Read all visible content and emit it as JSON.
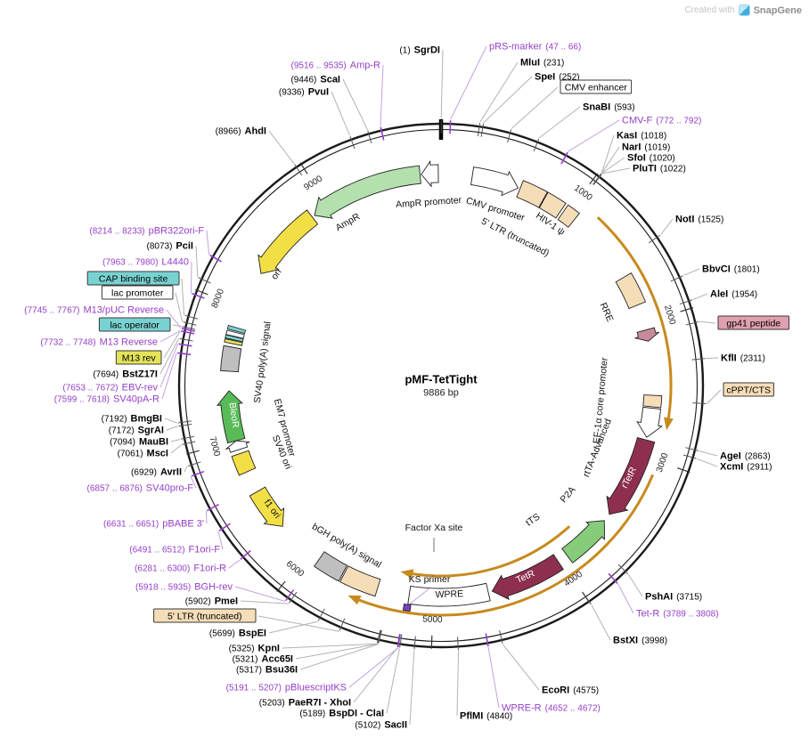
{
  "watermark": {
    "prefix": "Created with",
    "brand": "SnapGene"
  },
  "plasmid": {
    "name": "pMF-TetTight",
    "size": "9886 bp",
    "length": 9886
  },
  "scale": {
    "ticks": [
      1000,
      2000,
      3000,
      4000,
      5000,
      6000,
      7000,
      8000,
      9000
    ]
  },
  "colors": {
    "primer": "#9540c8",
    "primer_leader": "#c5a0e2",
    "enzyme_leader": "#b3b3b3",
    "gold": "#c78a1e",
    "maroon": "#8e2f4f",
    "tan": "#f5ddb8",
    "teal": "#79d2d2",
    "yellow": "#f2df45",
    "gray_box": "#bfbfbf",
    "green_light": "#b4e0ae",
    "green": "#58bb58"
  },
  "callouts": [
    {
      "label": "SgrDI",
      "pos": "(1)",
      "kind": "enzyme",
      "bp": 1,
      "side": "left"
    },
    {
      "label": "pRS-marker",
      "pos": "(47 .. 66)",
      "kind": "primer",
      "bp": 56,
      "side": "right"
    },
    {
      "label": "MluI",
      "pos": "(231)",
      "kind": "enzyme",
      "bp": 231,
      "side": "right"
    },
    {
      "label": "SpeI",
      "pos": "(252)",
      "kind": "enzyme",
      "bp": 252,
      "side": "right"
    },
    {
      "label": "CMV enhancer",
      "kind": "box",
      "fill": "#ffffff",
      "bp": 420,
      "side": "right"
    },
    {
      "label": "SnaBI",
      "pos": "(593)",
      "kind": "enzyme",
      "bp": 593,
      "side": "right"
    },
    {
      "label": "CMV-F",
      "pos": "(772 .. 792)",
      "kind": "primer",
      "bp": 782,
      "side": "right"
    },
    {
      "label": "KasI",
      "pos": "(1018)",
      "kind": "enzyme",
      "bp": 1018,
      "side": "right"
    },
    {
      "label": "NarI",
      "pos": "(1019)",
      "kind": "enzyme",
      "bp": 1019,
      "side": "right"
    },
    {
      "label": "SfoI",
      "pos": "(1020)",
      "kind": "enzyme",
      "bp": 1020,
      "side": "right"
    },
    {
      "label": "PluTI",
      "pos": "(1022)",
      "kind": "enzyme",
      "bp": 1022,
      "side": "right"
    },
    {
      "label": "NotI",
      "pos": "(1525)",
      "kind": "enzyme",
      "bp": 1525,
      "side": "right"
    },
    {
      "label": "BbvCI",
      "pos": "(1801)",
      "kind": "enzyme",
      "bp": 1801,
      "side": "right"
    },
    {
      "label": "AleI",
      "pos": "(1954)",
      "kind": "enzyme",
      "bp": 1954,
      "side": "right"
    },
    {
      "label": "gp41 peptide",
      "kind": "box",
      "fill": "#dfa0af",
      "bp": 2090,
      "side": "right"
    },
    {
      "label": "KflI",
      "pos": "(2311)",
      "kind": "enzyme",
      "bp": 2311,
      "side": "right"
    },
    {
      "label": "cPPT/CTS",
      "kind": "box",
      "fill": "#f5ddb8",
      "bp": 2580,
      "side": "right"
    },
    {
      "label": "AgeI",
      "pos": "(2863)",
      "kind": "enzyme",
      "bp": 2863,
      "side": "right"
    },
    {
      "label": "XcmI",
      "pos": "(2911)",
      "kind": "enzyme",
      "bp": 2911,
      "side": "right"
    },
    {
      "label": "PshAI",
      "pos": "(3715)",
      "kind": "enzyme",
      "bp": 3715,
      "side": "right"
    },
    {
      "label": "Tet-R",
      "pos": "(3789 .. 3808)",
      "kind": "primer",
      "bp": 3798,
      "side": "right"
    },
    {
      "label": "BstXI",
      "pos": "(3998)",
      "kind": "enzyme",
      "bp": 3998,
      "side": "right"
    },
    {
      "label": "EcoRI",
      "pos": "(4575)",
      "kind": "enzyme",
      "bp": 4575,
      "side": "right"
    },
    {
      "label": "WPRE-R",
      "pos": "(4652 .. 4672)",
      "kind": "primer",
      "bp": 4662,
      "side": "right"
    },
    {
      "label": "PflMI",
      "pos": "(4840)",
      "kind": "enzyme",
      "bp": 4840,
      "side": "right"
    },
    {
      "label": "SacII",
      "pos": "(5102)",
      "kind": "enzyme",
      "bp": 5102,
      "side": "left"
    },
    {
      "label": "BspDI - ClaI",
      "pos": "(5189)",
      "kind": "enzyme",
      "bp": 5189,
      "side": "left"
    },
    {
      "label": "PaeR7I - XhoI",
      "pos": "(5203)",
      "kind": "enzyme",
      "bp": 5203,
      "side": "left"
    },
    {
      "label": "pBluescriptKS",
      "pos": "(5191 .. 5207)",
      "kind": "primer",
      "bp": 5199,
      "side": "left"
    },
    {
      "label": "Bsu36I",
      "pos": "(5317)",
      "kind": "enzyme",
      "bp": 5317,
      "side": "left"
    },
    {
      "label": "Acc65I",
      "pos": "(5321)",
      "kind": "enzyme",
      "bp": 5321,
      "side": "left"
    },
    {
      "label": "KpnI",
      "pos": "(5325)",
      "kind": "enzyme",
      "bp": 5325,
      "side": "left"
    },
    {
      "label": "BspEI",
      "pos": "(5699)",
      "kind": "enzyme",
      "bp": 5699,
      "side": "left"
    },
    {
      "label": "5' LTR (truncated)",
      "kind": "box",
      "fill": "#f5ddb8",
      "bp": 5560,
      "side": "left"
    },
    {
      "label": "PmeI",
      "pos": "(5902)",
      "kind": "enzyme",
      "bp": 5902,
      "side": "left"
    },
    {
      "label": "BGH-rev",
      "pos": "(5918 .. 5935)",
      "kind": "primer",
      "bp": 5926,
      "side": "left"
    },
    {
      "label": "F1ori-R",
      "pos": "(6281 .. 6300)",
      "kind": "primer",
      "bp": 6290,
      "side": "left"
    },
    {
      "label": "F1ori-F",
      "pos": "(6491 .. 6512)",
      "kind": "primer",
      "bp": 6501,
      "side": "left"
    },
    {
      "label": "pBABE 3'",
      "pos": "(6631 .. 6651)",
      "kind": "primer",
      "bp": 6641,
      "side": "left"
    },
    {
      "label": "SV40pro-F",
      "pos": "(6857 .. 6876)",
      "kind": "primer",
      "bp": 6866,
      "side": "left"
    },
    {
      "label": "AvrII",
      "pos": "(6929)",
      "kind": "enzyme",
      "bp": 6929,
      "side": "left"
    },
    {
      "label": "MscI",
      "pos": "(7061)",
      "kind": "enzyme",
      "bp": 7061,
      "side": "left"
    },
    {
      "label": "MauBI",
      "pos": "(7094)",
      "kind": "enzyme",
      "bp": 7094,
      "side": "left"
    },
    {
      "label": "SgrAI",
      "pos": "(7172)",
      "kind": "enzyme",
      "bp": 7172,
      "side": "left"
    },
    {
      "label": "BmgBI",
      "pos": "(7192)",
      "kind": "enzyme",
      "bp": 7192,
      "side": "left"
    },
    {
      "label": "SV40pA-R",
      "pos": "(7599 .. 7618)",
      "kind": "primer",
      "bp": 7608,
      "side": "left"
    },
    {
      "label": "EBV-rev",
      "pos": "(7653 .. 7672)",
      "kind": "primer",
      "bp": 7662,
      "side": "left"
    },
    {
      "label": "BstZ17I",
      "pos": "(7694)",
      "kind": "enzyme",
      "bp": 7694,
      "side": "left"
    },
    {
      "label": "M13 rev",
      "kind": "box",
      "fill": "#e3e35a",
      "bp": 7740,
      "side": "left"
    },
    {
      "label": "M13 Reverse",
      "pos": "(7732 .. 7748)",
      "kind": "primer",
      "bp": 7740,
      "side": "left"
    },
    {
      "label": "lac operator",
      "kind": "box",
      "fill": "#79d2d2",
      "bp": 7767,
      "side": "left"
    },
    {
      "label": "M13/pUC Reverse",
      "pos": "(7745 .. 7767)",
      "kind": "primer",
      "bp": 7756,
      "side": "left"
    },
    {
      "label": "lac promoter",
      "kind": "box",
      "fill": "#ffffff",
      "bp": 7795,
      "side": "left"
    },
    {
      "label": "CAP binding site",
      "kind": "box",
      "fill": "#79d2d2",
      "bp": 7835,
      "side": "left"
    },
    {
      "label": "L4440",
      "pos": "(7963 .. 7980)",
      "kind": "primer",
      "bp": 7971,
      "side": "left"
    },
    {
      "label": "PciI",
      "pos": "(8073)",
      "kind": "enzyme",
      "bp": 8073,
      "side": "left"
    },
    {
      "label": "pBR322ori-F",
      "pos": "(8214 .. 8233)",
      "kind": "primer",
      "bp": 8223,
      "side": "left"
    },
    {
      "label": "AhdI",
      "pos": "(8966)",
      "kind": "enzyme",
      "bp": 8966,
      "side": "left"
    },
    {
      "label": "PvuI",
      "pos": "(9336)",
      "kind": "enzyme",
      "bp": 9336,
      "side": "left"
    },
    {
      "label": "ScaI",
      "pos": "(9446)",
      "kind": "enzyme",
      "bp": 9446,
      "side": "left"
    },
    {
      "label": "Amp-R",
      "pos": "(9516 .. 9535)",
      "kind": "primer",
      "bp": 9525,
      "side": "left"
    }
  ],
  "features": [
    {
      "name": "cmv-promoter",
      "start": 233,
      "end": 585,
      "shape": "arrow_fwd",
      "fill": "#ffffff"
    },
    {
      "name": "ltr-truncated-top",
      "start": 600,
      "end": 790,
      "shape": "box",
      "fill": "#f5ddb8"
    },
    {
      "name": "hiv1-psi-a",
      "start": 795,
      "end": 945,
      "shape": "box",
      "fill": "#f5ddb8"
    },
    {
      "name": "hiv1-psi-b",
      "start": 965,
      "end": 1065,
      "shape": "box",
      "fill": "#f5ddb8"
    },
    {
      "name": "rre",
      "start": 1630,
      "end": 1860,
      "shape": "box",
      "fill": "#f5ddb8"
    },
    {
      "name": "gp41-peptide",
      "start": 2055,
      "end": 2140,
      "shape": "arrow_fwd",
      "fill": "#c98b9b"
    },
    {
      "name": "cppt-cts",
      "start": 2545,
      "end": 2630,
      "shape": "box",
      "fill": "#f5ddb8"
    },
    {
      "name": "ef1a-core-promoter",
      "start": 2640,
      "end": 2860,
      "shape": "arrow_fwd",
      "fill": "#ffffff"
    },
    {
      "name": "rtetr-arrow",
      "start": 2880,
      "end": 3500,
      "shape": "arrow_fwd",
      "fill": "#8e2f4f"
    },
    {
      "name": "green-arrow",
      "start": 3560,
      "end": 3940,
      "shape": "arrow_rev",
      "fill": "#86cc7a"
    },
    {
      "name": "tetr-arrow",
      "start": 4020,
      "end": 4560,
      "shape": "arrow_fwd",
      "fill": "#8e2f4f"
    },
    {
      "name": "wpre",
      "start": 4590,
      "end": 5180,
      "shape": "box",
      "fill": "#ffffff"
    },
    {
      "name": "ks-primer-bar",
      "start": 5158,
      "end": 5206,
      "shape": "outer_bar",
      "fill": "#7b3fc4"
    },
    {
      "name": "ltr-truncated-bottom",
      "start": 5420,
      "end": 5690,
      "shape": "box",
      "fill": "#f5ddb8"
    },
    {
      "name": "bgh-polya",
      "start": 5700,
      "end": 5905,
      "shape": "box",
      "fill": "#bfbfbf"
    },
    {
      "name": "f1-ori",
      "start": 6270,
      "end": 6590,
      "shape": "arrow_rev",
      "fill": "#f2df45"
    },
    {
      "name": "sv40-ori",
      "start": 6755,
      "end": 6900,
      "shape": "box",
      "fill": "#f2df45"
    },
    {
      "name": "em7-promoter",
      "start": 6930,
      "end": 7000,
      "shape": "arrow_fwd",
      "fill": "#ffffff"
    },
    {
      "name": "bleor",
      "start": 7000,
      "end": 7375,
      "shape": "arrow_fwd",
      "fill": "#58bb58"
    },
    {
      "name": "sv40-polya",
      "start": 7520,
      "end": 7700,
      "shape": "box",
      "fill": "#bfbfbf"
    },
    {
      "name": "m13-rev-site",
      "start": 7726,
      "end": 7750,
      "shape": "box",
      "fill": "#e3e35a"
    },
    {
      "name": "lac-operator",
      "start": 7756,
      "end": 7779,
      "shape": "box",
      "fill": "#79d2d2"
    },
    {
      "name": "lac-promoter",
      "start": 7782,
      "end": 7812,
      "shape": "box",
      "fill": "#ffffff"
    },
    {
      "name": "cap-binding-site",
      "start": 7822,
      "end": 7848,
      "shape": "box",
      "fill": "#79d2d2"
    },
    {
      "name": "ori",
      "start": 8290,
      "end": 8860,
      "shape": "arrow_rev",
      "fill": "#f2df45"
    },
    {
      "name": "ampr",
      "start": 8880,
      "end": 9730,
      "shape": "arrow_rev",
      "fill": "#b4e0ae"
    },
    {
      "name": "ampr-promoter",
      "start": 9740,
      "end": 9866,
      "shape": "arrow_rev",
      "fill": "#ffffff"
    }
  ],
  "gold_arcs": [
    {
      "start": 1180,
      "end": 2780,
      "r": 258
    },
    {
      "start": 3100,
      "end": 5600,
      "r": 258
    },
    {
      "start": 3780,
      "end": 5280,
      "r": 214
    }
  ],
  "feature_labels": [
    {
      "text": "AmpR promoter",
      "bp": 9780,
      "r": 203
    },
    {
      "text": "AmpR",
      "bp": 9070,
      "r": 208
    },
    {
      "text": "ori",
      "bp": 8350,
      "r": 220
    },
    {
      "text": "CMV promoter",
      "bp": 470,
      "r": 204
    },
    {
      "text": "5' LTR (truncated)",
      "bp": 730,
      "r": 183
    },
    {
      "text": "HIV-1 ψ",
      "bp": 935,
      "r": 216
    },
    {
      "text": "RRE",
      "bp": 1815,
      "r": 200
    },
    {
      "text": "EF-1α core promoter",
      "bp": 2620,
      "r": 183
    },
    {
      "text": "rtTA-Advanced",
      "bp": 3070,
      "r": 192
    },
    {
      "text": "rTetR",
      "bp": 3190,
      "r": 238,
      "fill": "#ffffff"
    },
    {
      "text": "P2A",
      "bp": 3590,
      "r": 191
    },
    {
      "text": "tTS",
      "bp": 4000,
      "r": 186
    },
    {
      "text": "TetR",
      "bp": 4290,
      "r": 238,
      "fill": "#ffffff"
    },
    {
      "text": "WPRE",
      "bp": 4880,
      "r": 238
    },
    {
      "text": "bGH poly(A) signal",
      "bp": 5780,
      "r": 212
    },
    {
      "text": "f1 ori",
      "bp": 6420,
      "r": 238
    },
    {
      "text": "SV40 ori",
      "bp": 6790,
      "r": 197
    },
    {
      "text": "EM7 promoter",
      "bp": 7000,
      "r": 185
    },
    {
      "text": "BleoR",
      "bp": 7190,
      "r": 238,
      "fill": "#ffffff"
    },
    {
      "text": "SV40 poly(A) signal",
      "bp": 7618,
      "r": 199
    }
  ],
  "free_labels": [
    {
      "text": "Factor Xa site"
    },
    {
      "text": "KS primer"
    }
  ]
}
